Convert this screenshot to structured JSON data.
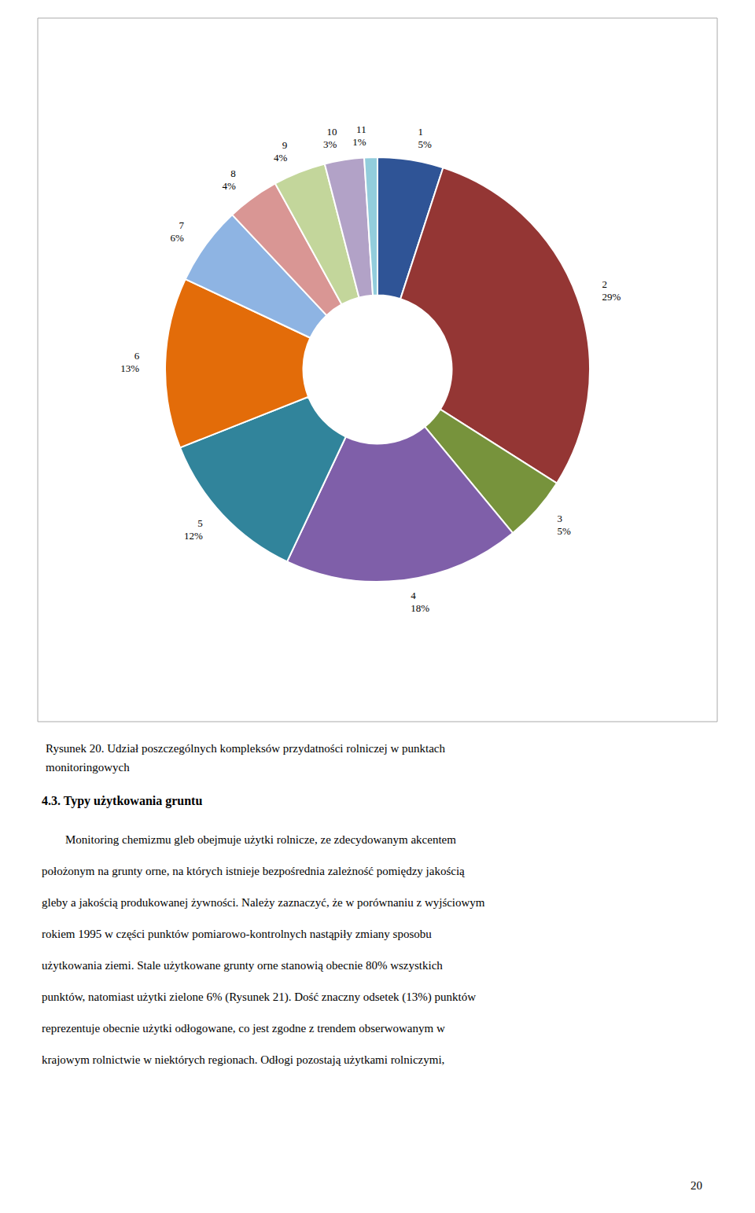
{
  "chart_data": {
    "type": "pie",
    "title": "Rysunek 20. Udział poszczególnych kompleksów przydatności rolniczej w punktach\nmonitoringowych",
    "categories": [
      "1",
      "2",
      "3",
      "4",
      "5",
      "6",
      "7",
      "8",
      "9",
      "10",
      "11"
    ],
    "values": [
      5,
      29,
      5,
      18,
      12,
      13,
      6,
      4,
      4,
      3,
      1
    ],
    "value_labels": [
      "5%",
      "29%",
      "5%",
      "18%",
      "12%",
      "13%",
      "6%",
      "4%",
      "4%",
      "3%",
      "1%"
    ],
    "colors": [
      "#2F5496",
      "#943634",
      "#77933C",
      "#7F5FA9",
      "#31849B",
      "#E36C09",
      "#8EB4E3",
      "#D99694",
      "#C3D69B",
      "#B2A2C7",
      "#92CDDC"
    ],
    "data_labels": true,
    "annotations": [
      "4.3. Typy użytkowania gruntu",
      "        Monitoring chemizmu gleb obejmuje użytki rolnicze, ze zdecydowanym akcentem",
      "położonym na grunty orne, na których istnieje bezpośrednia zależność pomiędzy jakością",
      "gleby a jakością produkowanej żywności. Należy zaznaczyć, że w porównaniu z wyjściowym",
      "rokiem 1995 w części punktów pomiarowo-kontrolnych nastąpiły zmiany sposobu",
      "użytkowania ziemi. Stale użytkowane grunty orne stanowią obecnie 80% wszystkich",
      "punktów, natomiast użytki zielone 6% (Rysunek 21). Dość znaczny odsetek (13%) punktów",
      "reprezentuje obecnie użytki odłogowane, co jest zgodne z trendem obserwowanym w",
      "krajowym rolnictwie w niektórych regionach. Odłogi pozostają użytkami rolniczymi,",
      "20"
    ]
  }
}
